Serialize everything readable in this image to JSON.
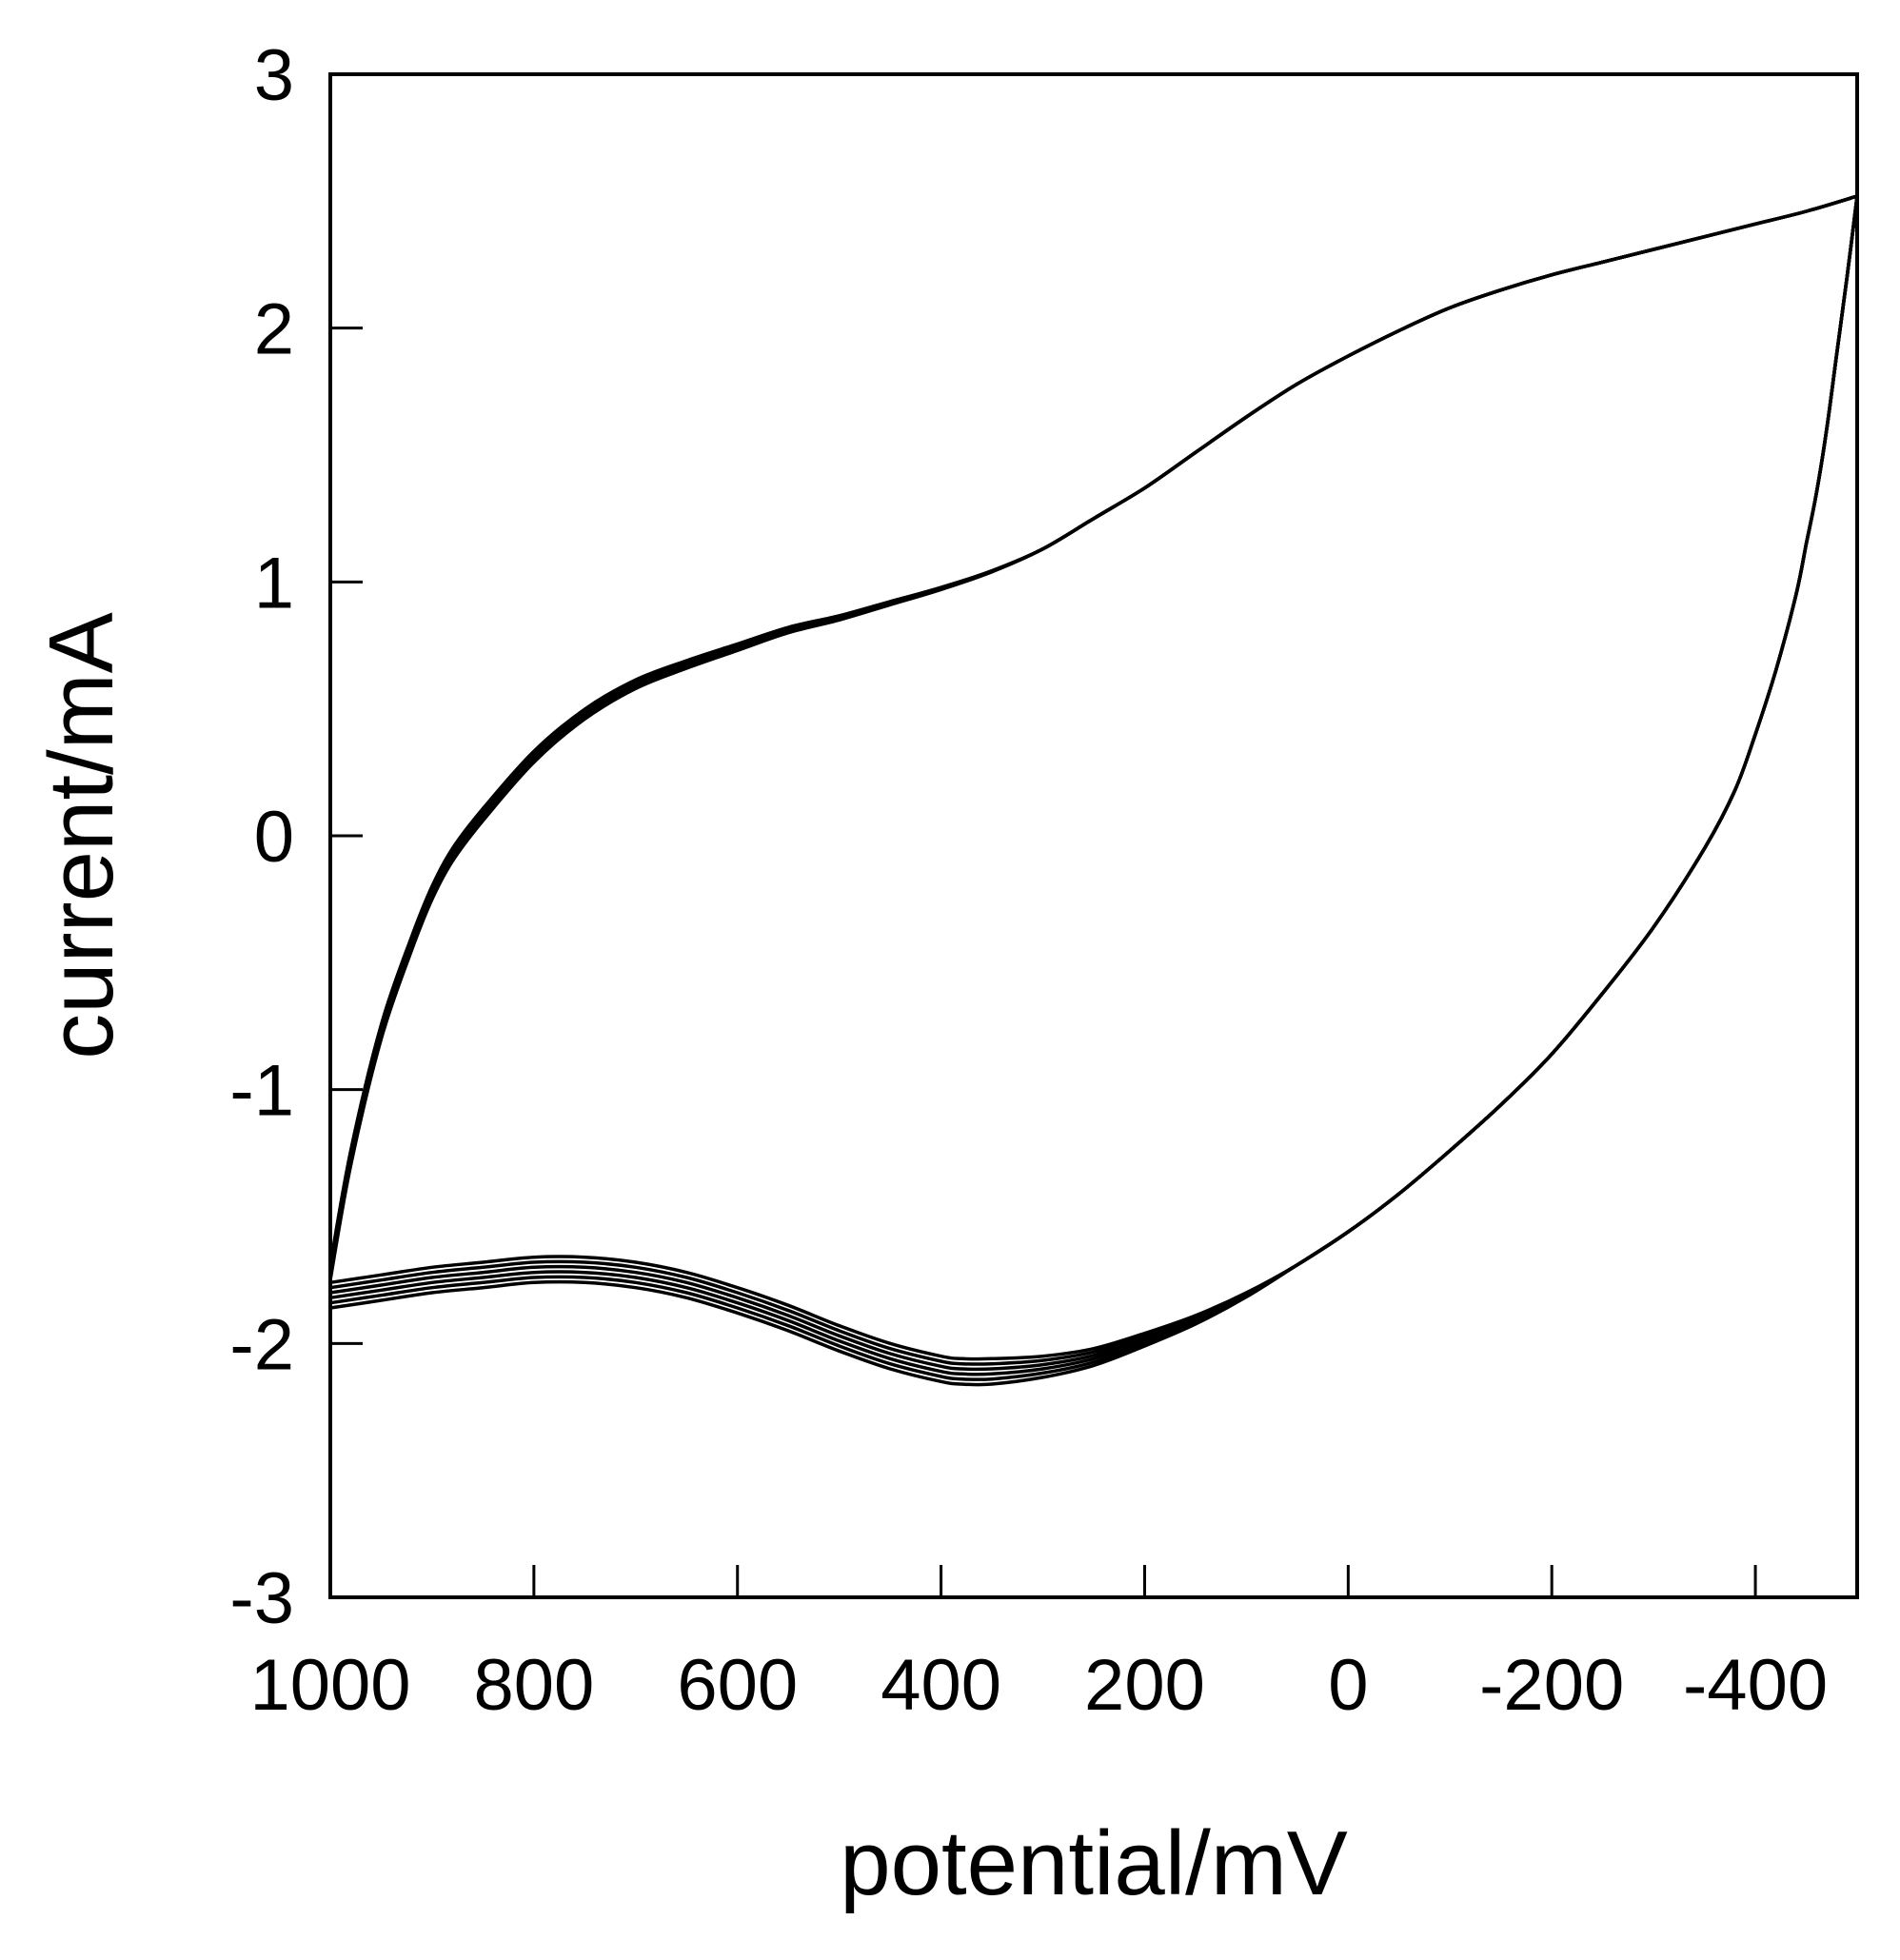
{
  "chart_data": {
    "type": "line",
    "title": "",
    "xlabel": "potential/mV",
    "ylabel": "current/mA",
    "xlim": [
      1000,
      -500
    ],
    "ylim": [
      -3,
      3
    ],
    "x_axis_reversed": true,
    "x_ticks": [
      1000,
      800,
      600,
      400,
      200,
      0,
      -200,
      -400
    ],
    "x_tick_labels": [
      "1000",
      "800",
      "600",
      "400",
      "200",
      "0",
      "-200",
      "-400"
    ],
    "y_ticks": [
      -3,
      -2,
      -1,
      0,
      1,
      2,
      3
    ],
    "y_tick_labels": [
      "-3",
      "-2",
      "-1",
      "0",
      "1",
      "2",
      "3"
    ],
    "grid": false,
    "legend": "none",
    "line_color": "#000000",
    "cycle_offsets_mA": {
      "anodic_branch": [
        0.0,
        0.012,
        0.024,
        0.036,
        0.048,
        0.06
      ],
      "cathodic_branch": [
        0.0,
        0.02,
        0.04,
        0.06,
        0.08,
        0.1
      ]
    },
    "anodic_branch": {
      "x": [
        1000,
        980,
        950,
        920,
        900,
        880,
        850,
        800,
        750,
        700,
        650,
        600,
        550,
        500,
        450,
        400,
        350,
        300,
        250,
        200,
        150,
        100,
        50,
        0,
        -50,
        -100,
        -150,
        -200,
        -250,
        -300,
        -350,
        -400,
        -450,
        -500
      ],
      "y": [
        -1.75,
        -1.3,
        -0.8,
        -0.45,
        -0.25,
        -0.1,
        0.06,
        0.29,
        0.46,
        0.58,
        0.66,
        0.73,
        0.8,
        0.85,
        0.91,
        0.97,
        1.04,
        1.13,
        1.25,
        1.37,
        1.51,
        1.65,
        1.78,
        1.89,
        1.99,
        2.08,
        2.15,
        2.21,
        2.26,
        2.31,
        2.36,
        2.41,
        2.46,
        2.52
      ]
    },
    "cathodic_branch": {
      "x": [
        -500,
        -490,
        -480,
        -470,
        -460,
        -450,
        -440,
        -420,
        -400,
        -380,
        -350,
        -300,
        -250,
        -200,
        -150,
        -100,
        -50,
        0,
        50,
        100,
        150,
        200,
        250,
        300,
        350,
        380,
        400,
        450,
        500,
        550,
        600,
        650,
        700,
        750,
        800,
        850,
        900,
        950,
        1000
      ],
      "y": [
        2.52,
        2.2,
        1.9,
        1.6,
        1.35,
        1.15,
        0.95,
        0.65,
        0.4,
        0.18,
        -0.05,
        -0.36,
        -0.62,
        -0.86,
        -1.06,
        -1.24,
        -1.41,
        -1.56,
        -1.69,
        -1.8,
        -1.89,
        -1.96,
        -2.02,
        -2.05,
        -2.06,
        -2.06,
        -2.05,
        -2.0,
        -1.93,
        -1.85,
        -1.78,
        -1.72,
        -1.68,
        -1.66,
        -1.66,
        -1.68,
        -1.7,
        -1.73,
        -1.76
      ]
    }
  }
}
